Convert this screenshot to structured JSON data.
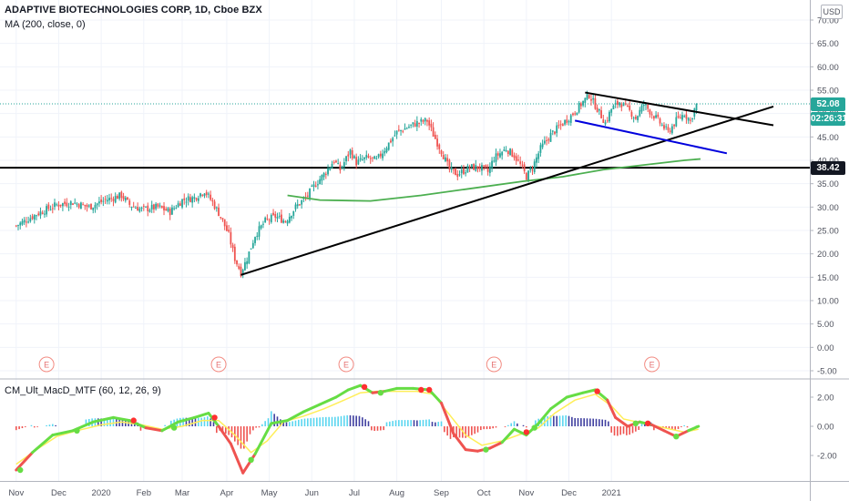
{
  "header": {
    "title": "ADAPTIVE BIOTECHNOLOGIES CORP, 1D, Cboe BZX",
    "ma": "MA (200, close, 0)",
    "indicator": "CM_Ult_MacD_MTF (60, 12, 26, 9)",
    "currency": "USD"
  },
  "price_tags": {
    "last": "52.08",
    "countdown": "02:26:31",
    "hline": "38.42"
  },
  "colors": {
    "up": "#26a69a",
    "down": "#ef5350",
    "ma": "#4caf50",
    "tag_last": "#26a69a",
    "tag_hline": "#131722",
    "macd_fast": "#66dd44",
    "macd_signal": "#ffee58",
    "hist_pos": "#5ad6f0",
    "hist_pos_fade": "#4040a0",
    "hist_neg": "#ef5350"
  },
  "chart_data": [
    {
      "type": "candlestick",
      "title": "ADAPTIVE BIOTECHNOLOGIES CORP, 1D, Cboe BZX",
      "y_ticks": [
        "-5.00",
        "0.00",
        "5.00",
        "10.00",
        "15.00",
        "20.00",
        "25.00",
        "30.00",
        "35.00",
        "40.00",
        "45.00",
        "50.00",
        "55.00",
        "60.00",
        "65.00",
        "70.00"
      ],
      "ylim": [
        -5,
        73
      ],
      "x_ticks": [
        "Nov",
        "Dec",
        "2020",
        "Feb",
        "Mar",
        "Apr",
        "May",
        "Jun",
        "Jul",
        "Aug",
        "Sep",
        "Oct",
        "Nov",
        "Dec",
        "2021"
      ],
      "close_series": [
        {
          "t": 0,
          "v": 26
        },
        {
          "t": 10,
          "v": 28.5
        },
        {
          "t": 20,
          "v": 30.5
        },
        {
          "t": 28,
          "v": 31
        },
        {
          "t": 36,
          "v": 30
        },
        {
          "t": 44,
          "v": 31.5
        },
        {
          "t": 52,
          "v": 32.5
        },
        {
          "t": 56,
          "v": 30.5
        },
        {
          "t": 62,
          "v": 29.5
        },
        {
          "t": 70,
          "v": 30
        },
        {
          "t": 76,
          "v": 29
        },
        {
          "t": 82,
          "v": 31.5
        },
        {
          "t": 88,
          "v": 32
        },
        {
          "t": 93,
          "v": 33.5
        },
        {
          "t": 97,
          "v": 31
        },
        {
          "t": 101,
          "v": 28
        },
        {
          "t": 105,
          "v": 24
        },
        {
          "t": 108,
          "v": 19
        },
        {
          "t": 111,
          "v": 16
        },
        {
          "t": 114,
          "v": 19
        },
        {
          "t": 118,
          "v": 24
        },
        {
          "t": 123,
          "v": 27
        },
        {
          "t": 128,
          "v": 28
        },
        {
          "t": 133,
          "v": 27
        },
        {
          "t": 138,
          "v": 30
        },
        {
          "t": 143,
          "v": 32
        },
        {
          "t": 148,
          "v": 35
        },
        {
          "t": 152,
          "v": 37
        },
        {
          "t": 157,
          "v": 40
        },
        {
          "t": 160,
          "v": 38
        },
        {
          "t": 165,
          "v": 42
        },
        {
          "t": 168,
          "v": 39.5
        },
        {
          "t": 173,
          "v": 40.5
        },
        {
          "t": 178,
          "v": 40
        },
        {
          "t": 183,
          "v": 43
        },
        {
          "t": 188,
          "v": 46
        },
        {
          "t": 193,
          "v": 47
        },
        {
          "t": 198,
          "v": 48
        },
        {
          "t": 203,
          "v": 48.5
        },
        {
          "t": 206,
          "v": 45.5
        },
        {
          "t": 210,
          "v": 42
        },
        {
          "t": 214,
          "v": 38
        },
        {
          "t": 218,
          "v": 37
        },
        {
          "t": 224,
          "v": 38.5
        },
        {
          "t": 229,
          "v": 38.5
        },
        {
          "t": 233,
          "v": 37.5
        },
        {
          "t": 236,
          "v": 40.5
        },
        {
          "t": 242,
          "v": 42.5
        },
        {
          "t": 246,
          "v": 41
        },
        {
          "t": 249,
          "v": 39
        },
        {
          "t": 252,
          "v": 36.5
        },
        {
          "t": 255,
          "v": 38.5
        },
        {
          "t": 259,
          "v": 42.5
        },
        {
          "t": 264,
          "v": 45.5
        },
        {
          "t": 269,
          "v": 47.5
        },
        {
          "t": 274,
          "v": 49.5
        },
        {
          "t": 279,
          "v": 52
        },
        {
          "t": 283,
          "v": 54
        },
        {
          "t": 287,
          "v": 51
        },
        {
          "t": 291,
          "v": 48
        },
        {
          "t": 294,
          "v": 51
        },
        {
          "t": 298,
          "v": 52.5
        },
        {
          "t": 302,
          "v": 51
        },
        {
          "t": 306,
          "v": 49
        },
        {
          "t": 310,
          "v": 52
        },
        {
          "t": 314,
          "v": 50
        },
        {
          "t": 318,
          "v": 48
        },
        {
          "t": 322,
          "v": 46
        },
        {
          "t": 326,
          "v": 48.5
        },
        {
          "t": 330,
          "v": 50
        },
        {
          "t": 333,
          "v": 48.5
        },
        {
          "t": 336,
          "v": 52.08
        }
      ],
      "ma200": [
        {
          "t": 134,
          "v": 32.5
        },
        {
          "t": 150,
          "v": 31.5
        },
        {
          "t": 175,
          "v": 31.3
        },
        {
          "t": 200,
          "v": 32.5
        },
        {
          "t": 225,
          "v": 34
        },
        {
          "t": 250,
          "v": 35.5
        },
        {
          "t": 270,
          "v": 36.5
        },
        {
          "t": 290,
          "v": 38
        },
        {
          "t": 310,
          "v": 39
        },
        {
          "t": 330,
          "v": 40
        },
        {
          "t": 338,
          "v": 40.3
        }
      ],
      "horizontal_line": 38.42,
      "trendlines": [
        {
          "from": {
            "t": 111,
            "v": 15.5
          },
          "to": {
            "t": 374,
            "v": 51.5
          },
          "color": "#000000"
        },
        {
          "from": {
            "t": 281,
            "v": 54.5
          },
          "to": {
            "t": 374,
            "v": 47.5
          },
          "color": "#000000"
        },
        {
          "from": {
            "t": 276,
            "v": 48.5
          },
          "to": {
            "t": 351,
            "v": 41.5
          },
          "color": "#0000dd"
        }
      ],
      "earnings_markers": [
        "E",
        "E",
        "E",
        "E",
        "E"
      ],
      "earnings_t": [
        15,
        100,
        163,
        236,
        314
      ]
    },
    {
      "type": "line",
      "title": "CM_Ult_MacD_MTF (60, 12, 26, 9)",
      "y_ticks": [
        "2.00",
        "0.00",
        "-2.00"
      ],
      "ylim": [
        -3.6,
        3.1
      ],
      "macd": [
        {
          "t": 0,
          "v": -3.0
        },
        {
          "t": 8,
          "v": -1.8
        },
        {
          "t": 18,
          "v": -0.6
        },
        {
          "t": 28,
          "v": -0.3
        },
        {
          "t": 38,
          "v": 0.3
        },
        {
          "t": 48,
          "v": 0.6
        },
        {
          "t": 56,
          "v": 0.4
        },
        {
          "t": 64,
          "v": -0.1
        },
        {
          "t": 72,
          "v": -0.3
        },
        {
          "t": 80,
          "v": 0.3
        },
        {
          "t": 88,
          "v": 0.6
        },
        {
          "t": 95,
          "v": 0.9
        },
        {
          "t": 100,
          "v": 0.0
        },
        {
          "t": 106,
          "v": -1.2
        },
        {
          "t": 112,
          "v": -3.2
        },
        {
          "t": 118,
          "v": -1.9
        },
        {
          "t": 126,
          "v": 0.2
        },
        {
          "t": 134,
          "v": 0.4
        },
        {
          "t": 142,
          "v": 1.0
        },
        {
          "t": 150,
          "v": 1.5
        },
        {
          "t": 158,
          "v": 2.0
        },
        {
          "t": 164,
          "v": 2.5
        },
        {
          "t": 170,
          "v": 2.8
        },
        {
          "t": 176,
          "v": 2.3
        },
        {
          "t": 182,
          "v": 2.4
        },
        {
          "t": 188,
          "v": 2.6
        },
        {
          "t": 196,
          "v": 2.6
        },
        {
          "t": 204,
          "v": 2.5
        },
        {
          "t": 210,
          "v": 1.6
        },
        {
          "t": 216,
          "v": -0.5
        },
        {
          "t": 222,
          "v": -1.6
        },
        {
          "t": 228,
          "v": -1.7
        },
        {
          "t": 234,
          "v": -1.5
        },
        {
          "t": 240,
          "v": -1.1
        },
        {
          "t": 246,
          "v": -0.2
        },
        {
          "t": 252,
          "v": -0.6
        },
        {
          "t": 258,
          "v": 0.2
        },
        {
          "t": 264,
          "v": 1.2
        },
        {
          "t": 272,
          "v": 2.0
        },
        {
          "t": 280,
          "v": 2.3
        },
        {
          "t": 286,
          "v": 2.5
        },
        {
          "t": 292,
          "v": 1.8
        },
        {
          "t": 296,
          "v": 0.6
        },
        {
          "t": 302,
          "v": 0.0
        },
        {
          "t": 308,
          "v": 0.3
        },
        {
          "t": 314,
          "v": 0.1
        },
        {
          "t": 320,
          "v": -0.3
        },
        {
          "t": 326,
          "v": -0.7
        },
        {
          "t": 332,
          "v": -0.3
        },
        {
          "t": 337,
          "v": 0.0
        }
      ],
      "signal": [
        {
          "t": 0,
          "v": -2.6
        },
        {
          "t": 10,
          "v": -1.6
        },
        {
          "t": 20,
          "v": -0.7
        },
        {
          "t": 30,
          "v": -0.3
        },
        {
          "t": 42,
          "v": 0.1
        },
        {
          "t": 52,
          "v": 0.3
        },
        {
          "t": 62,
          "v": 0.1
        },
        {
          "t": 72,
          "v": -0.2
        },
        {
          "t": 82,
          "v": 0.0
        },
        {
          "t": 92,
          "v": 0.4
        },
        {
          "t": 100,
          "v": 0.4
        },
        {
          "t": 108,
          "v": -0.6
        },
        {
          "t": 116,
          "v": -1.8
        },
        {
          "t": 124,
          "v": -1.0
        },
        {
          "t": 132,
          "v": 0.3
        },
        {
          "t": 142,
          "v": 0.7
        },
        {
          "t": 152,
          "v": 1.2
        },
        {
          "t": 162,
          "v": 1.8
        },
        {
          "t": 170,
          "v": 2.3
        },
        {
          "t": 178,
          "v": 2.4
        },
        {
          "t": 188,
          "v": 2.4
        },
        {
          "t": 198,
          "v": 2.4
        },
        {
          "t": 206,
          "v": 2.2
        },
        {
          "t": 214,
          "v": 0.8
        },
        {
          "t": 222,
          "v": -0.6
        },
        {
          "t": 230,
          "v": -1.3
        },
        {
          "t": 240,
          "v": -1.0
        },
        {
          "t": 250,
          "v": -0.5
        },
        {
          "t": 258,
          "v": -0.1
        },
        {
          "t": 266,
          "v": 0.9
        },
        {
          "t": 276,
          "v": 1.8
        },
        {
          "t": 286,
          "v": 2.2
        },
        {
          "t": 294,
          "v": 1.4
        },
        {
          "t": 300,
          "v": 0.5
        },
        {
          "t": 310,
          "v": 0.2
        },
        {
          "t": 320,
          "v": -0.1
        },
        {
          "t": 330,
          "v": -0.4
        },
        {
          "t": 337,
          "v": -0.2
        }
      ],
      "cross_points": [
        {
          "t": 2,
          "v": -3.0,
          "color": "#66dd44"
        },
        {
          "t": 30,
          "v": -0.3,
          "color": "#66dd44"
        },
        {
          "t": 58,
          "v": 0.4,
          "color": "#ff3030"
        },
        {
          "t": 78,
          "v": -0.1,
          "color": "#66dd44"
        },
        {
          "t": 98,
          "v": 0.6,
          "color": "#ff3030"
        },
        {
          "t": 116,
          "v": -2.3,
          "color": "#66dd44"
        },
        {
          "t": 172,
          "v": 2.7,
          "color": "#ff3030"
        },
        {
          "t": 180,
          "v": 2.3,
          "color": "#66dd44"
        },
        {
          "t": 200,
          "v": 2.5,
          "color": "#ff3030"
        },
        {
          "t": 204,
          "v": 2.5,
          "color": "#ff3030"
        },
        {
          "t": 232,
          "v": -1.6,
          "color": "#66dd44"
        },
        {
          "t": 252,
          "v": -0.4,
          "color": "#ff3030"
        },
        {
          "t": 256,
          "v": -0.1,
          "color": "#66dd44"
        },
        {
          "t": 287,
          "v": 2.4,
          "color": "#ff3030"
        },
        {
          "t": 306,
          "v": 0.2,
          "color": "#66dd44"
        },
        {
          "t": 312,
          "v": 0.2,
          "color": "#ff3030"
        },
        {
          "t": 326,
          "v": -0.7,
          "color": "#66dd44"
        }
      ]
    }
  ]
}
